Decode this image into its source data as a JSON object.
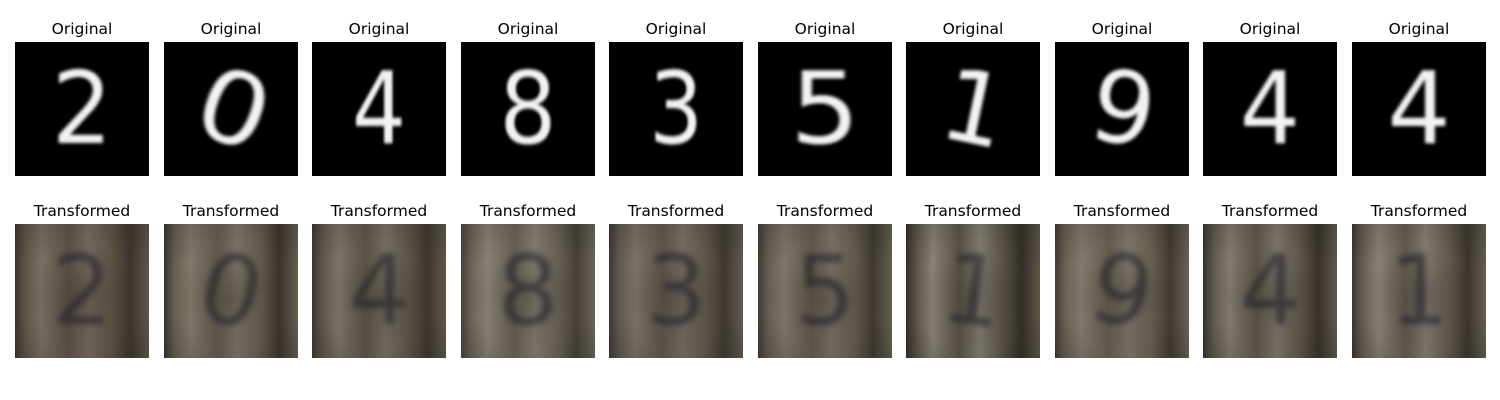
{
  "row_titles": {
    "original": "Original",
    "transformed": "Transformed"
  },
  "samples": [
    {
      "original_digit": "2",
      "transformed_hint": "2"
    },
    {
      "original_digit": "0",
      "transformed_hint": "0"
    },
    {
      "original_digit": "4",
      "transformed_hint": "4"
    },
    {
      "original_digit": "8",
      "transformed_hint": "8"
    },
    {
      "original_digit": "3",
      "transformed_hint": "3"
    },
    {
      "original_digit": "5",
      "transformed_hint": "5"
    },
    {
      "original_digit": "1",
      "transformed_hint": "1"
    },
    {
      "original_digit": "9",
      "transformed_hint": "9"
    },
    {
      "original_digit": "4",
      "transformed_hint": "4"
    },
    {
      "original_digit": "4",
      "transformed_hint": "1"
    }
  ],
  "colors": {
    "background": "#ffffff",
    "original_bg": "#000000",
    "original_fg": "#f2f2f2",
    "transformed_base": "#7a7263"
  }
}
